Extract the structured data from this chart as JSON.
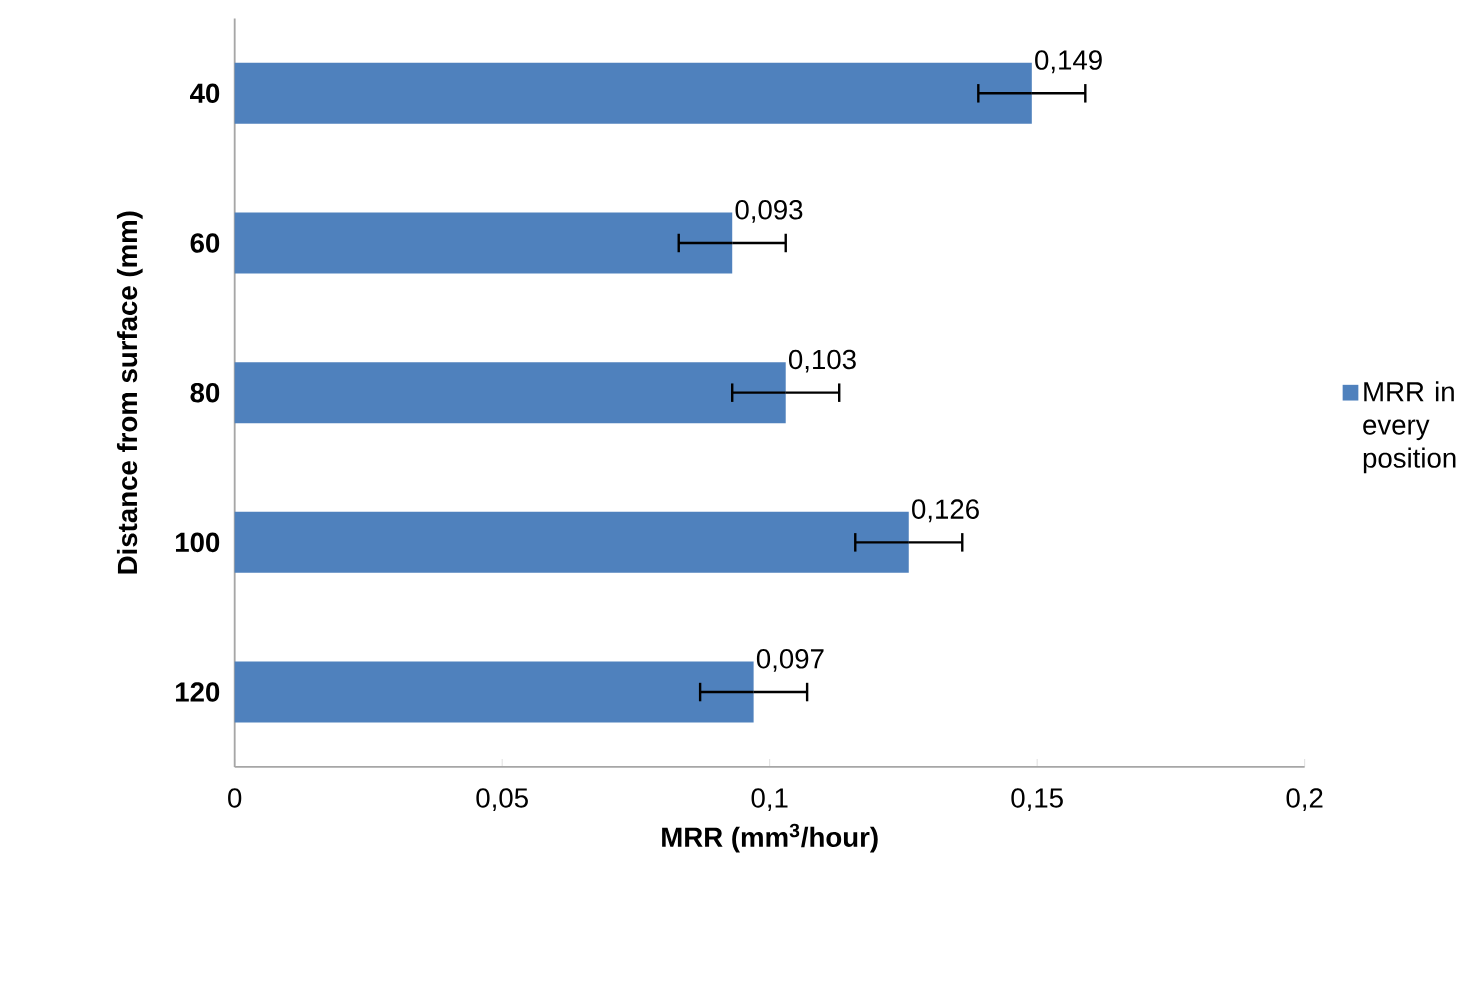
{
  "chart_data": {
    "type": "bar",
    "orientation": "horizontal",
    "xlabel": "MRR (mm$^{3}$/hour)",
    "ylabel": "Distance from surface (mm)",
    "categories": [
      "40",
      "60",
      "80",
      "100",
      "120"
    ],
    "series": [
      {
        "name": "MRR in every position",
        "color": "#4f81bd",
        "values": [
          0.149,
          0.093,
          0.103,
          0.126,
          0.097
        ],
        "errors": [
          0.01,
          0.01,
          0.01,
          0.01,
          0.01
        ],
        "value_labels": [
          "0,149",
          "0,093",
          "0,103",
          "0,126",
          "0,097"
        ]
      }
    ],
    "xlim": [
      0,
      0.2
    ],
    "xticks": [
      {
        "value": 0,
        "label": "0"
      },
      {
        "value": 0.05,
        "label": "0,05"
      },
      {
        "value": 0.1,
        "label": "0,1"
      },
      {
        "value": 0.15,
        "label": "0,15"
      },
      {
        "value": 0.2,
        "label": "0,2"
      }
    ],
    "legend": "right"
  }
}
